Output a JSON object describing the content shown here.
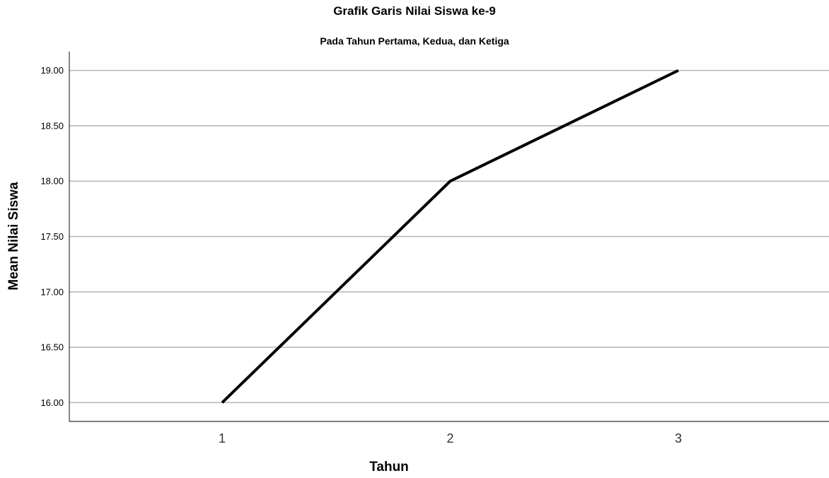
{
  "chart_data": {
    "type": "line",
    "title": "Grafik Garis Nilai Siswa ke-9",
    "subtitle": "Pada Tahun Pertama, Kedua, dan Ketiga",
    "xlabel": "Tahun",
    "ylabel": "Mean Nilai Siswa",
    "categories": [
      "1",
      "2",
      "3"
    ],
    "series": [
      {
        "values": [
          16.0,
          18.0,
          19.0
        ]
      }
    ],
    "ylim": [
      15.83,
      19.17
    ],
    "yticks": [
      "16.00",
      "16.50",
      "17.00",
      "17.50",
      "18.00",
      "18.50",
      "19.00"
    ],
    "ytick_values": [
      16.0,
      16.5,
      17.0,
      17.5,
      18.0,
      18.5,
      19.0
    ],
    "grid": true,
    "line_color": "#000000",
    "grid_color": "#b4b4b4"
  }
}
